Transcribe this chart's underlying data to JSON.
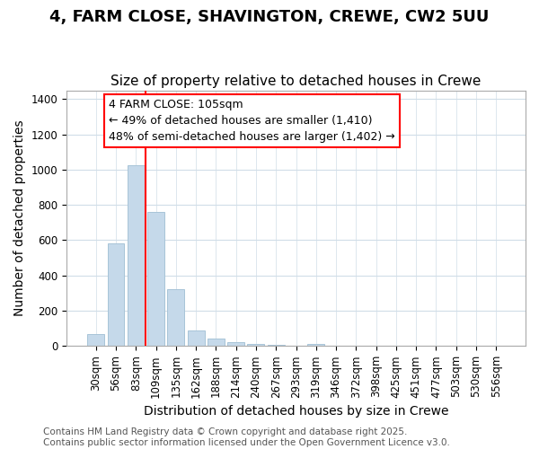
{
  "title": "4, FARM CLOSE, SHAVINGTON, CREWE, CW2 5UU",
  "subtitle": "Size of property relative to detached houses in Crewe",
  "xlabel": "Distribution of detached houses by size in Crewe",
  "ylabel": "Number of detached properties",
  "categories": [
    "30sqm",
    "56sqm",
    "83sqm",
    "109sqm",
    "135sqm",
    "162sqm",
    "188sqm",
    "214sqm",
    "240sqm",
    "267sqm",
    "293sqm",
    "319sqm",
    "346sqm",
    "372sqm",
    "398sqm",
    "425sqm",
    "451sqm",
    "477sqm",
    "503sqm",
    "530sqm",
    "556sqm"
  ],
  "values": [
    68,
    580,
    1025,
    760,
    320,
    90,
    42,
    20,
    10,
    5,
    1,
    12,
    0,
    0,
    0,
    0,
    0,
    0,
    0,
    0,
    0
  ],
  "bar_color": "#c5d9ea",
  "bar_edge_color": "#a8c4d8",
  "vline_x": 2.5,
  "vline_color": "red",
  "ann_text_line1": "4 FARM CLOSE: 105sqm",
  "ann_text_line2": "← 49% of detached houses are smaller (1,410)",
  "ann_text_line3": "48% of semi-detached houses are larger (1,402) →",
  "ylim": [
    0,
    1450
  ],
  "yticks": [
    0,
    200,
    400,
    600,
    800,
    1000,
    1200,
    1400
  ],
  "footnote": "Contains HM Land Registry data © Crown copyright and database right 2025.\nContains public sector information licensed under the Open Government Licence v3.0.",
  "bg_color": "#ffffff",
  "plot_bg_color": "#ffffff",
  "grid_color": "#d0dde8",
  "title_fontsize": 13,
  "subtitle_fontsize": 11,
  "axis_label_fontsize": 10,
  "tick_fontsize": 8.5,
  "ann_fontsize": 9,
  "footnote_fontsize": 7.5
}
